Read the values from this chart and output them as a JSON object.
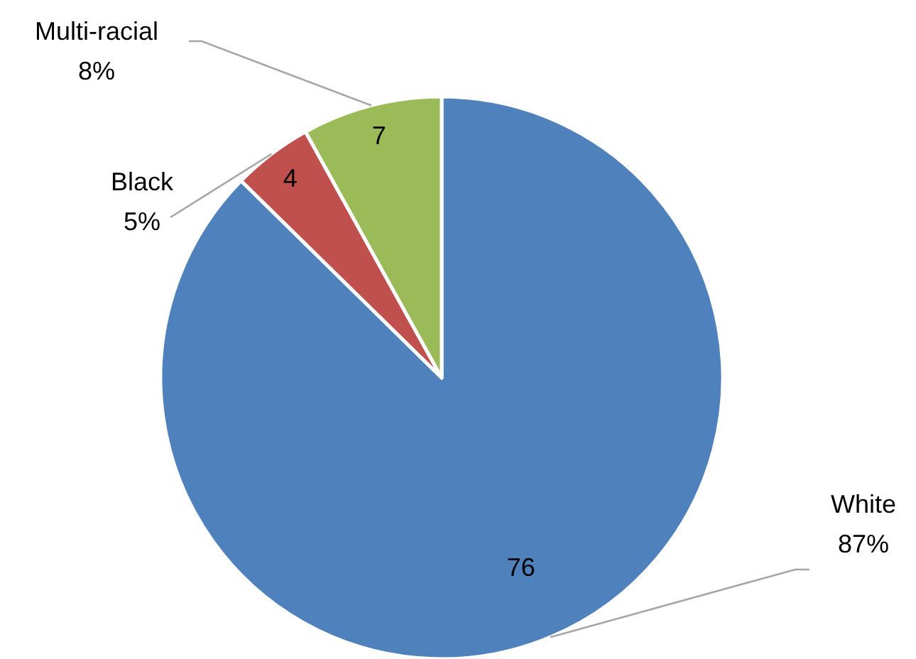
{
  "chart_data": {
    "type": "pie",
    "categories": [
      "White",
      "Black",
      "Multi-racial"
    ],
    "values": [
      76,
      4,
      7
    ],
    "colors": [
      "#4f81bd",
      "#c0504d",
      "#9bbb59"
    ],
    "data_labels": true,
    "annotations": [
      {
        "text": "87%",
        "x": "White"
      },
      {
        "text": "5%",
        "x": "Black"
      },
      {
        "text": "8%",
        "x": "Multi-racial"
      }
    ]
  }
}
